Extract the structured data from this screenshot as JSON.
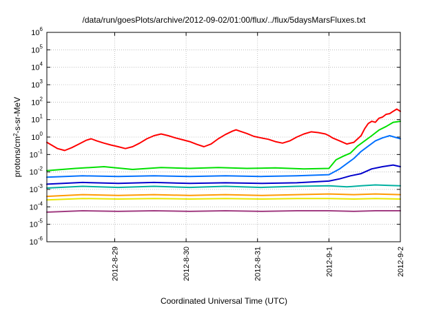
{
  "chart_data": {
    "type": "line",
    "title": "/data/run/goesPlots/archive/2012-09-02/01:00/flux/../flux/5daysMarsFluxes.txt",
    "xlabel": "Coordinated Universal Time (UTC)",
    "ylabel": {
      "prefix": "protons/cm",
      "sup": "2",
      "suffix": "-s-sr-MeV"
    },
    "yscale": "log",
    "ylim_exponents": [
      -6,
      6
    ],
    "y_tick_base": "10",
    "y_tick_exponents": [
      "6",
      "5",
      "4",
      "3",
      "2",
      "1",
      "0",
      "-1",
      "-2",
      "-3",
      "-4",
      "-5",
      "-6"
    ],
    "xlim_days": [
      0,
      4.95
    ],
    "x_ticks": [
      {
        "label": "2012-8-29",
        "day": 0.95
      },
      {
        "label": "2012-8-30",
        "day": 1.95
      },
      {
        "label": "2012-8-31",
        "day": 2.95
      },
      {
        "label": "2012-9-1",
        "day": 3.95
      },
      {
        "label": "2012-9-2",
        "day": 4.95
      }
    ],
    "grid": true,
    "legend": "none",
    "series": [
      {
        "color": "#ff0000",
        "points": [
          [
            0.0,
            0.5
          ],
          [
            0.08,
            0.32
          ],
          [
            0.15,
            0.22
          ],
          [
            0.25,
            0.17
          ],
          [
            0.35,
            0.25
          ],
          [
            0.45,
            0.4
          ],
          [
            0.55,
            0.65
          ],
          [
            0.62,
            0.8
          ],
          [
            0.7,
            0.6
          ],
          [
            0.8,
            0.45
          ],
          [
            0.9,
            0.35
          ],
          [
            1.0,
            0.28
          ],
          [
            1.1,
            0.22
          ],
          [
            1.2,
            0.28
          ],
          [
            1.3,
            0.45
          ],
          [
            1.4,
            0.8
          ],
          [
            1.5,
            1.2
          ],
          [
            1.6,
            1.5
          ],
          [
            1.7,
            1.2
          ],
          [
            1.8,
            0.9
          ],
          [
            1.9,
            0.7
          ],
          [
            2.0,
            0.55
          ],
          [
            2.1,
            0.38
          ],
          [
            2.2,
            0.28
          ],
          [
            2.3,
            0.4
          ],
          [
            2.4,
            0.8
          ],
          [
            2.5,
            1.4
          ],
          [
            2.6,
            2.2
          ],
          [
            2.65,
            2.6
          ],
          [
            2.7,
            2.2
          ],
          [
            2.8,
            1.6
          ],
          [
            2.9,
            1.1
          ],
          [
            3.0,
            0.9
          ],
          [
            3.1,
            0.75
          ],
          [
            3.2,
            0.55
          ],
          [
            3.3,
            0.45
          ],
          [
            3.4,
            0.6
          ],
          [
            3.5,
            1.0
          ],
          [
            3.6,
            1.5
          ],
          [
            3.7,
            2.0
          ],
          [
            3.8,
            1.8
          ],
          [
            3.9,
            1.5
          ],
          [
            3.95,
            1.2
          ],
          [
            4.0,
            0.9
          ],
          [
            4.1,
            0.6
          ],
          [
            4.2,
            0.4
          ],
          [
            4.3,
            0.5
          ],
          [
            4.4,
            1.2
          ],
          [
            4.45,
            3.0
          ],
          [
            4.5,
            6.0
          ],
          [
            4.55,
            8.0
          ],
          [
            4.6,
            7.0
          ],
          [
            4.65,
            12
          ],
          [
            4.7,
            14
          ],
          [
            4.75,
            20
          ],
          [
            4.8,
            22
          ],
          [
            4.85,
            30
          ],
          [
            4.9,
            40
          ],
          [
            4.95,
            30
          ]
        ]
      },
      {
        "color": "#00e000",
        "points": [
          [
            0.0,
            0.012
          ],
          [
            0.4,
            0.016
          ],
          [
            0.8,
            0.02
          ],
          [
            1.2,
            0.014
          ],
          [
            1.6,
            0.018
          ],
          [
            2.0,
            0.016
          ],
          [
            2.4,
            0.018
          ],
          [
            2.8,
            0.016
          ],
          [
            3.2,
            0.017
          ],
          [
            3.6,
            0.015
          ],
          [
            3.95,
            0.016
          ],
          [
            4.05,
            0.05
          ],
          [
            4.15,
            0.08
          ],
          [
            4.25,
            0.12
          ],
          [
            4.35,
            0.3
          ],
          [
            4.45,
            0.6
          ],
          [
            4.55,
            1.2
          ],
          [
            4.65,
            2.5
          ],
          [
            4.75,
            4.0
          ],
          [
            4.85,
            7.0
          ],
          [
            4.95,
            8.0
          ]
        ]
      },
      {
        "color": "#0070ff",
        "points": [
          [
            0.0,
            0.005
          ],
          [
            0.5,
            0.006
          ],
          [
            1.0,
            0.0055
          ],
          [
            1.5,
            0.006
          ],
          [
            2.0,
            0.0055
          ],
          [
            2.5,
            0.006
          ],
          [
            3.0,
            0.0055
          ],
          [
            3.5,
            0.006
          ],
          [
            3.95,
            0.007
          ],
          [
            4.1,
            0.015
          ],
          [
            4.2,
            0.03
          ],
          [
            4.3,
            0.06
          ],
          [
            4.4,
            0.15
          ],
          [
            4.5,
            0.3
          ],
          [
            4.6,
            0.6
          ],
          [
            4.7,
            0.9
          ],
          [
            4.8,
            1.2
          ],
          [
            4.95,
            0.8
          ]
        ]
      },
      {
        "color": "#0000cc",
        "points": [
          [
            0.0,
            0.002
          ],
          [
            0.5,
            0.0025
          ],
          [
            1.0,
            0.0022
          ],
          [
            1.5,
            0.0025
          ],
          [
            2.0,
            0.0022
          ],
          [
            2.5,
            0.0024
          ],
          [
            3.0,
            0.0022
          ],
          [
            3.5,
            0.0024
          ],
          [
            3.95,
            0.003
          ],
          [
            4.1,
            0.004
          ],
          [
            4.25,
            0.006
          ],
          [
            4.4,
            0.008
          ],
          [
            4.55,
            0.015
          ],
          [
            4.7,
            0.02
          ],
          [
            4.85,
            0.025
          ],
          [
            4.95,
            0.02
          ]
        ]
      },
      {
        "color": "#00b0a0",
        "points": [
          [
            0.0,
            0.0012
          ],
          [
            0.5,
            0.0015
          ],
          [
            1.0,
            0.0013
          ],
          [
            1.5,
            0.0015
          ],
          [
            2.0,
            0.0013
          ],
          [
            2.5,
            0.0015
          ],
          [
            3.0,
            0.0013
          ],
          [
            3.5,
            0.0015
          ],
          [
            3.95,
            0.0016
          ],
          [
            4.2,
            0.0014
          ],
          [
            4.4,
            0.0016
          ],
          [
            4.6,
            0.0018
          ],
          [
            4.8,
            0.0017
          ],
          [
            4.95,
            0.0016
          ]
        ]
      },
      {
        "color": "#ff9900",
        "points": [
          [
            0.0,
            0.0004
          ],
          [
            0.5,
            0.0005
          ],
          [
            1.0,
            0.00045
          ],
          [
            1.5,
            0.0005
          ],
          [
            2.0,
            0.00045
          ],
          [
            2.5,
            0.0005
          ],
          [
            3.0,
            0.00045
          ],
          [
            3.5,
            0.0005
          ],
          [
            3.95,
            0.00055
          ],
          [
            4.3,
            0.0005
          ],
          [
            4.6,
            0.00055
          ],
          [
            4.95,
            0.0005
          ]
        ]
      },
      {
        "color": "#e8e800",
        "points": [
          [
            0.0,
            0.00025
          ],
          [
            0.5,
            0.0003
          ],
          [
            1.0,
            0.00028
          ],
          [
            1.5,
            0.0003
          ],
          [
            2.0,
            0.00028
          ],
          [
            2.5,
            0.0003
          ],
          [
            3.0,
            0.00028
          ],
          [
            3.5,
            0.0003
          ],
          [
            3.95,
            0.0003
          ],
          [
            4.3,
            0.00028
          ],
          [
            4.6,
            0.0003
          ],
          [
            4.95,
            0.00028
          ]
        ]
      },
      {
        "color": "#a03a80",
        "points": [
          [
            0.0,
            5e-05
          ],
          [
            0.5,
            6e-05
          ],
          [
            1.0,
            5.5e-05
          ],
          [
            1.5,
            6e-05
          ],
          [
            2.0,
            5.5e-05
          ],
          [
            2.5,
            6e-05
          ],
          [
            3.0,
            5.5e-05
          ],
          [
            3.5,
            6e-05
          ],
          [
            3.95,
            6e-05
          ],
          [
            4.3,
            5.5e-05
          ],
          [
            4.6,
            6e-05
          ],
          [
            4.95,
            6e-05
          ]
        ]
      }
    ]
  }
}
